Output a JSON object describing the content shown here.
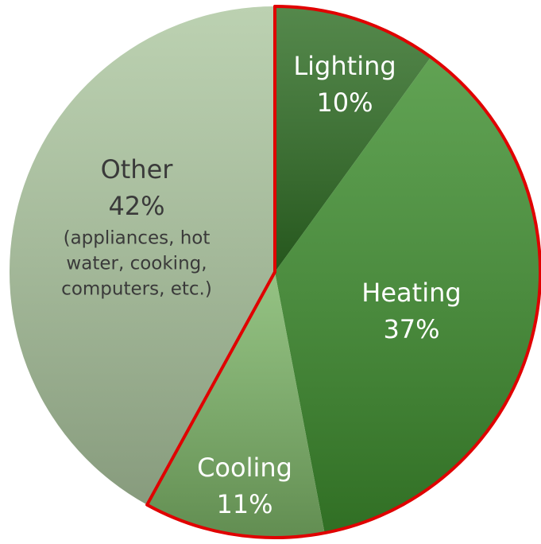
{
  "chart_data": {
    "type": "pie",
    "categories": [
      "Lighting",
      "Heating",
      "Cooling",
      "Other"
    ],
    "values": [
      10,
      37,
      11,
      42
    ],
    "value_labels": [
      "10%",
      "37%",
      "11%",
      "42%"
    ],
    "colors": [
      "#2f6e24",
      "#3e8e2e",
      "#7db568",
      "#adc7a0"
    ],
    "note": [
      "(appliances, hot",
      "water, cooking,",
      "computers, etc.)"
    ],
    "highlighted": [
      "Lighting",
      "Heating",
      "Cooling"
    ],
    "highlight_color": "#e00000"
  }
}
